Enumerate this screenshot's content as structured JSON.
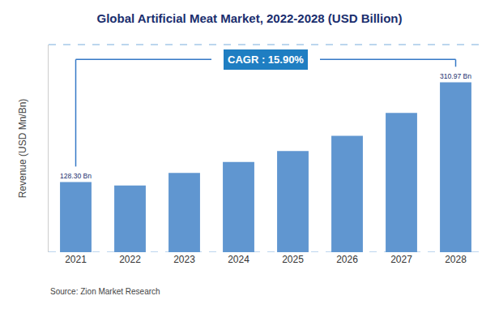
{
  "chart_data": {
    "type": "bar",
    "title": "Global Artificial Meat Market, 2022-2028 (USD Billion)",
    "ylabel": "Revenue (USD Mn/Bn)",
    "categories": [
      "2021",
      "2022",
      "2023",
      "2024",
      "2025",
      "2026",
      "2027",
      "2028"
    ],
    "values": [
      128.3,
      122.0,
      145.0,
      165.0,
      185.0,
      213.0,
      255.0,
      310.97
    ],
    "value_labels": [
      "128.30 Bn",
      null,
      null,
      null,
      null,
      null,
      null,
      "310.97 Bn"
    ],
    "color": "#6096D0",
    "ylim": [
      0,
      380
    ],
    "tick_labels": "x",
    "grid": false,
    "annotations": [
      "CAGR : 15.90%"
    ],
    "source": "Source: Zion Market Research"
  }
}
